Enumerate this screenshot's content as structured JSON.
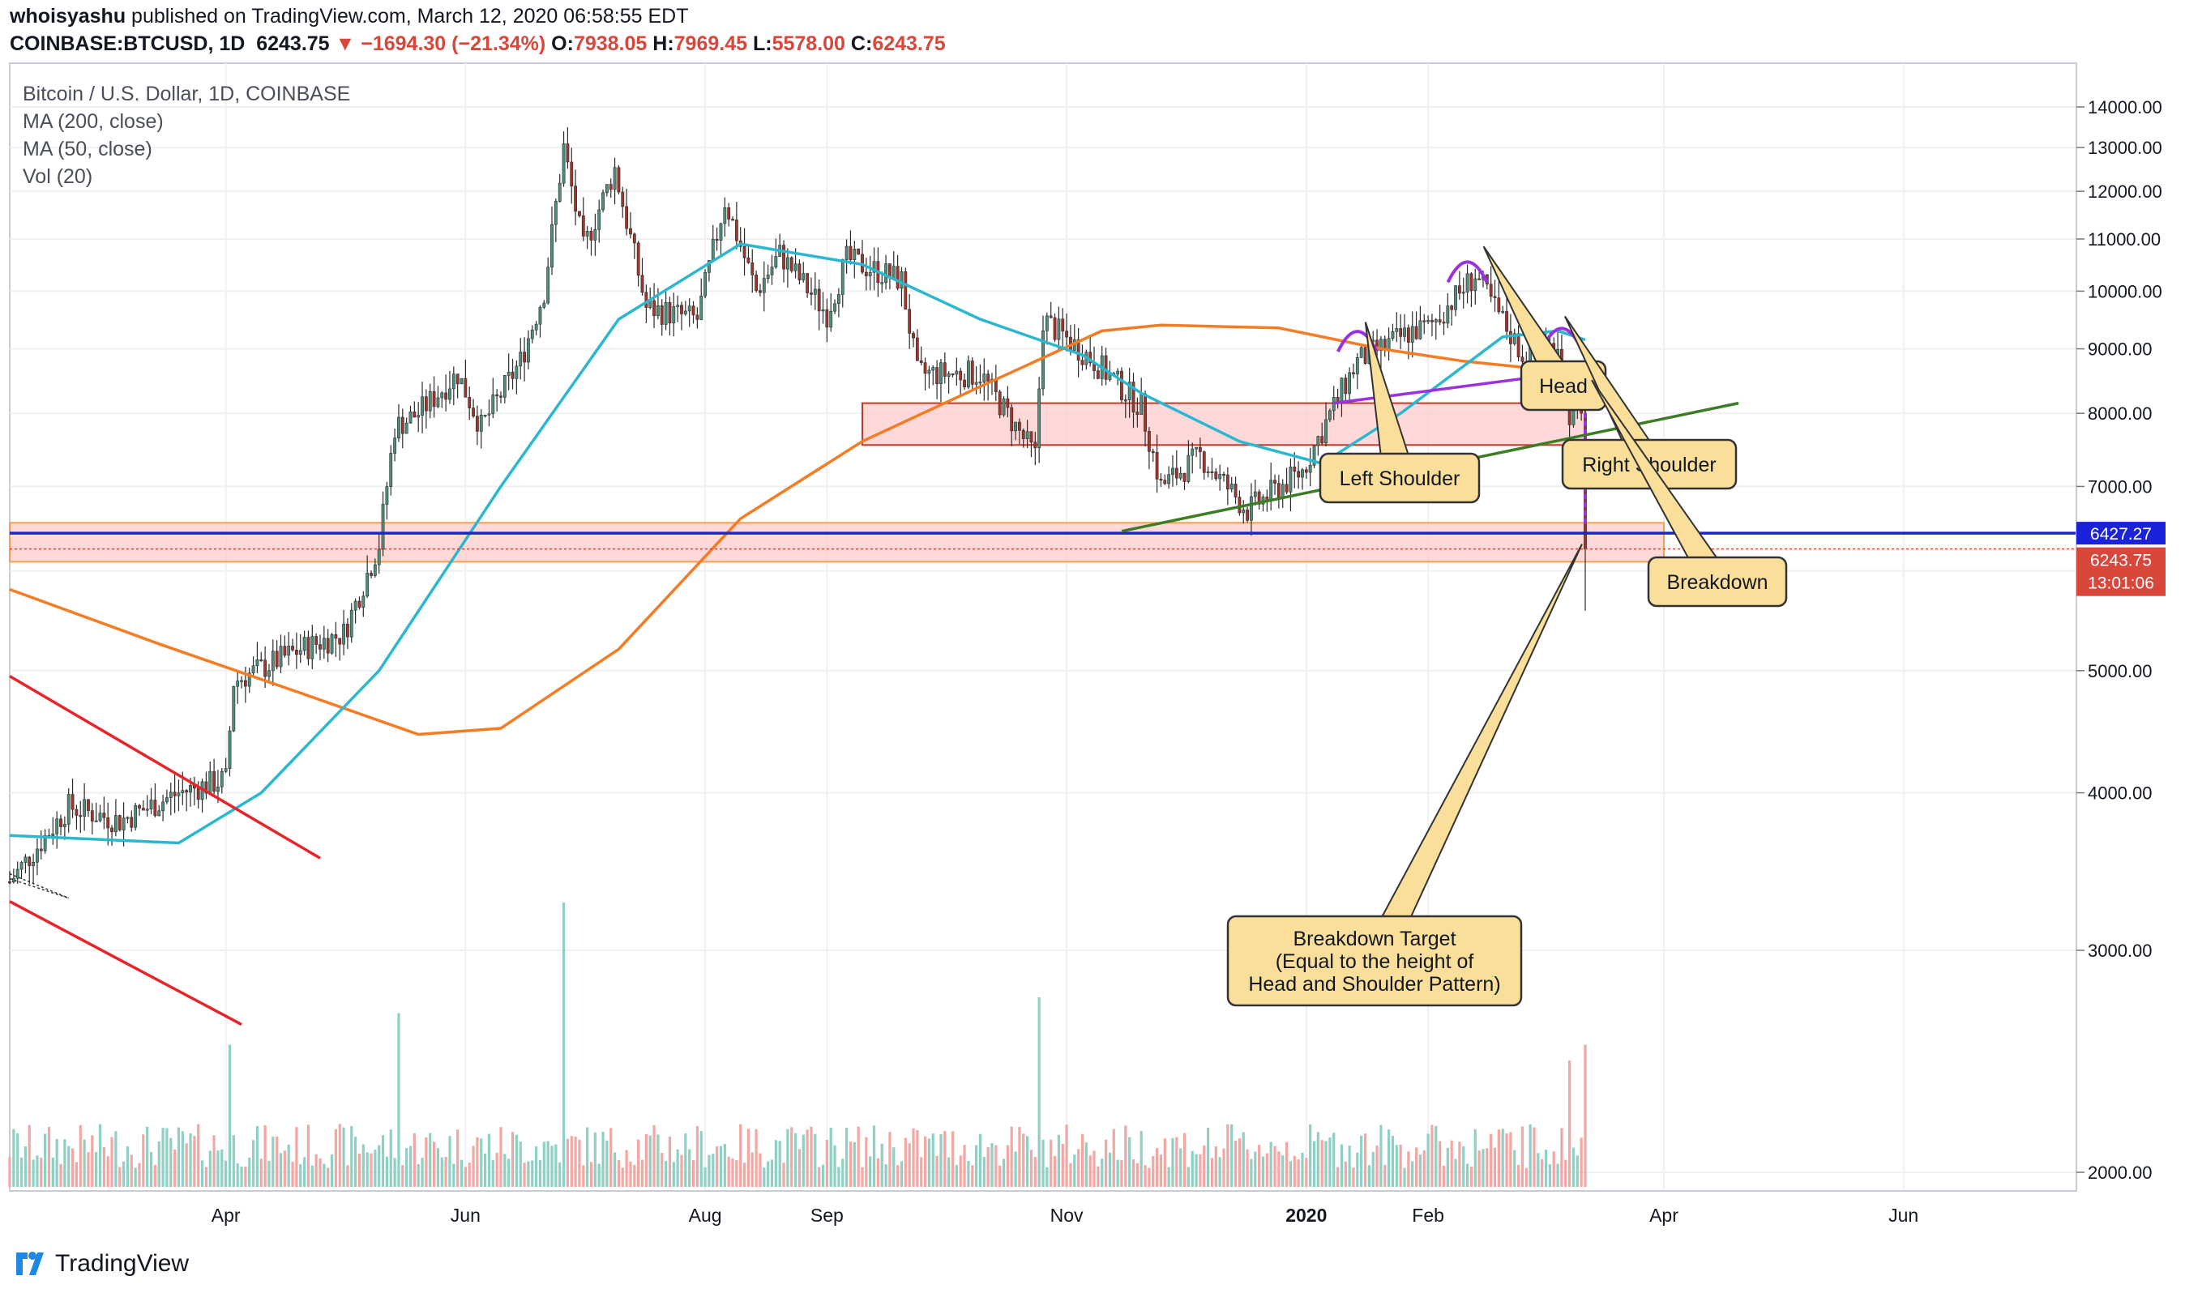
{
  "header": {
    "line1_user": "whoisyashu",
    "line1_rest": "published on TradingView.com, March 12, 2020 06:58:55 EDT",
    "symbol": "COINBASE:BTCUSD, 1D",
    "last": "6243.75",
    "change_arrow": "▼",
    "change": "−1694.30 (−21.34%)",
    "o_label": "O:",
    "o_value": "7938.05",
    "h_label": "H:",
    "h_value": "7969.45",
    "l_label": "L:",
    "l_value": "5578.00",
    "c_label": "C:",
    "c_value": "6243.75"
  },
  "legend": {
    "title": "Bitcoin / U.S. Dollar, 1D, COINBASE",
    "ma200": "MA (200, close)",
    "ma50": "MA (50, close)",
    "vol": "Vol (20)"
  },
  "brand": {
    "name": "TradingView"
  },
  "colors": {
    "up": "#4c8f7c",
    "down": "#a0352c",
    "ma200": "#f57c22",
    "ma50": "#2bb7d0",
    "support_line": "#1a23d9",
    "trendline": "#3a7d25",
    "neckline": "#9b30e0",
    "red_lines": "#e8232a",
    "zone_fill": "#ffcccc",
    "zone_stroke": "#c0392b",
    "badge_blue": "#1a23d9",
    "badge_red": "#d9463a",
    "callout_fill": "#f9df9a"
  },
  "chart_data": {
    "type": "candlestick",
    "title": "Bitcoin / U.S. Dollar, 1D, COINBASE",
    "y_scale": "log",
    "ylim": [
      1900,
      14500
    ],
    "y_ticks": [
      "14000.00",
      "13000.00",
      "12000.00",
      "11000.00",
      "10000.00",
      "9000.00",
      "8000.00",
      "7000.00",
      "6000.00",
      "5000.00",
      "4000.00",
      "3000.00",
      "2000.00"
    ],
    "x_range": [
      "2019-02-05",
      "2020-07-15"
    ],
    "x_ticks": [
      {
        "date": "2019-04-01",
        "label": "Apr"
      },
      {
        "date": "2019-06-01",
        "label": "Jun"
      },
      {
        "date": "2019-08-01",
        "label": "Aug"
      },
      {
        "date": "2019-09-01",
        "label": "Sep"
      },
      {
        "date": "2019-11-01",
        "label": "Nov"
      },
      {
        "date": "2020-01-01",
        "label": "2020"
      },
      {
        "date": "2020-02-01",
        "label": "Feb"
      },
      {
        "date": "2020-04-01",
        "label": "Apr"
      },
      {
        "date": "2020-06-01",
        "label": "Jun"
      }
    ],
    "close_path": [
      [
        "2019-02-05",
        3400
      ],
      [
        "2019-02-20",
        3900
      ],
      [
        "2019-03-05",
        3800
      ],
      [
        "2019-03-20",
        4000
      ],
      [
        "2019-04-01",
        4100
      ],
      [
        "2019-04-03",
        4900
      ],
      [
        "2019-04-20",
        5200
      ],
      [
        "2019-05-01",
        5350
      ],
      [
        "2019-05-10",
        6300
      ],
      [
        "2019-05-14",
        7800
      ],
      [
        "2019-05-20",
        8000
      ],
      [
        "2019-05-30",
        8600
      ],
      [
        "2019-06-05",
        7800
      ],
      [
        "2019-06-15",
        8800
      ],
      [
        "2019-06-21",
        10000
      ],
      [
        "2019-06-26",
        13000
      ],
      [
        "2019-07-01",
        10800
      ],
      [
        "2019-07-09",
        12500
      ],
      [
        "2019-07-17",
        9700
      ],
      [
        "2019-07-30",
        9500
      ],
      [
        "2019-08-06",
        11800
      ],
      [
        "2019-08-14",
        10000
      ],
      [
        "2019-08-20",
        10700
      ],
      [
        "2019-09-01",
        9600
      ],
      [
        "2019-09-06",
        10600
      ],
      [
        "2019-09-20",
        10200
      ],
      [
        "2019-09-24",
        8600
      ],
      [
        "2019-10-10",
        8600
      ],
      [
        "2019-10-24",
        7400
      ],
      [
        "2019-10-26",
        9500
      ],
      [
        "2019-11-08",
        8800
      ],
      [
        "2019-11-20",
        8100
      ],
      [
        "2019-11-25",
        7000
      ],
      [
        "2019-12-05",
        7400
      ],
      [
        "2019-12-17",
        6700
      ],
      [
        "2019-12-31",
        7200
      ],
      [
        "2020-01-08",
        8100
      ],
      [
        "2020-01-14",
        8800
      ],
      [
        "2020-01-28",
        9300
      ],
      [
        "2020-02-01",
        9350
      ],
      [
        "2020-02-13",
        10300
      ],
      [
        "2020-02-18",
        9700
      ],
      [
        "2020-02-26",
        8800
      ],
      [
        "2020-03-05",
        9100
      ],
      [
        "2020-03-08",
        8000
      ],
      [
        "2020-03-11",
        7900
      ],
      [
        "2020-03-12",
        6243.75
      ]
    ],
    "ma200_path": [
      [
        "2019-02-05",
        5800
      ],
      [
        "2019-03-15",
        5250
      ],
      [
        "2019-04-20",
        4800
      ],
      [
        "2019-05-20",
        4450
      ],
      [
        "2019-06-10",
        4500
      ],
      [
        "2019-07-10",
        5200
      ],
      [
        "2019-08-10",
        6600
      ],
      [
        "2019-09-10",
        7600
      ],
      [
        "2019-10-10",
        8400
      ],
      [
        "2019-11-10",
        9300
      ],
      [
        "2019-11-25",
        9400
      ],
      [
        "2019-12-25",
        9350
      ],
      [
        "2020-01-20",
        9000
      ],
      [
        "2020-02-10",
        8800
      ],
      [
        "2020-03-12",
        8600
      ]
    ],
    "ma50_path": [
      [
        "2019-02-05",
        3700
      ],
      [
        "2019-03-20",
        3650
      ],
      [
        "2019-04-10",
        4000
      ],
      [
        "2019-05-10",
        5000
      ],
      [
        "2019-06-10",
        7000
      ],
      [
        "2019-07-10",
        9500
      ],
      [
        "2019-08-10",
        10900
      ],
      [
        "2019-09-10",
        10500
      ],
      [
        "2019-10-10",
        9500
      ],
      [
        "2019-11-05",
        8900
      ],
      [
        "2019-11-20",
        8300
      ],
      [
        "2019-12-15",
        7600
      ],
      [
        "2020-01-05",
        7300
      ],
      [
        "2020-01-25",
        8000
      ],
      [
        "2020-02-20",
        9200
      ],
      [
        "2020-03-05",
        9300
      ],
      [
        "2020-03-12",
        9150
      ]
    ],
    "volume_spikes": [
      {
        "date": "2019-06-26",
        "rel": 0.9
      },
      {
        "date": "2019-10-25",
        "rel": 0.6
      },
      {
        "date": "2019-05-15",
        "rel": 0.55
      },
      {
        "date": "2019-04-02",
        "rel": 0.45
      },
      {
        "date": "2020-03-12",
        "rel": 0.45
      },
      {
        "date": "2020-03-08",
        "rel": 0.4
      }
    ],
    "price_lines": [
      {
        "name": "support",
        "value": 6427.27,
        "label": "6427.27",
        "style": "solid"
      },
      {
        "name": "last",
        "value": 6243.75,
        "label": "6243.75",
        "style": "dotted"
      }
    ],
    "countdown": "13:01:06",
    "zones": [
      {
        "name": "resistance-zone",
        "from": "2019-09-10",
        "to": "2020-03-12",
        "low": 7550,
        "high": 8150
      },
      {
        "name": "support-zone",
        "from": "2019-02-05",
        "to": "2020-04-01",
        "low": 6100,
        "high": 6550
      }
    ],
    "trendlines": [
      {
        "name": "ascending-support",
        "from": [
          "2019-11-15",
          6450
        ],
        "to": [
          "2020-04-20",
          8150
        ]
      },
      {
        "name": "neckline",
        "from": [
          "2020-01-08",
          8150
        ],
        "to": [
          "2020-03-12",
          8650
        ]
      },
      {
        "name": "upper-red-line",
        "from": [
          "2019-02-05",
          4950
        ],
        "to": [
          "2019-04-25",
          3550
        ]
      },
      {
        "name": "lower-red-line",
        "from": [
          "2019-02-05",
          3280
        ],
        "to": [
          "2019-04-05",
          2620
        ]
      },
      {
        "name": "target-projection",
        "from": [
          "2020-03-12",
          8600
        ],
        "to": [
          "2020-03-12",
          6550
        ]
      }
    ],
    "annotations": [
      {
        "text": "Head",
        "anchor": [
          "2020-02-11",
          10850
        ]
      },
      {
        "text": "Left Shoulder",
        "anchor": [
          "2020-01-14",
          9450
        ]
      },
      {
        "text": "Right Shoulder",
        "anchor": [
          "2020-03-06",
          9550
        ]
      },
      {
        "text": "Breakdown",
        "anchor": [
          "2020-03-12",
          8500
        ]
      },
      {
        "text": "Breakdown Target\n(Equal to the height of\nHead and Shoulder Pattern)",
        "anchor": [
          "2020-03-12",
          6300
        ]
      }
    ]
  }
}
